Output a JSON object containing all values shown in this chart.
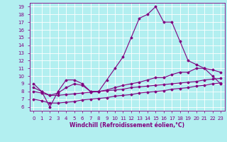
{
  "xlabel": "Windchill (Refroidissement éolien,°C)",
  "background_color": "#b2eff0",
  "grid_color": "#ffffff",
  "line_color": "#800080",
  "x_values": [
    0,
    1,
    2,
    3,
    4,
    5,
    6,
    7,
    8,
    9,
    10,
    11,
    12,
    13,
    14,
    15,
    16,
    17,
    18,
    19,
    20,
    21,
    22,
    23
  ],
  "y_main": [
    9,
    8,
    6,
    8,
    9.5,
    9.5,
    9,
    8,
    8,
    9.5,
    11,
    12.5,
    15,
    17.5,
    18,
    19,
    17,
    17,
    14.5,
    12,
    11.5,
    11,
    10,
    9
  ],
  "y_line1": [
    8.0,
    7.8,
    7.5,
    7.5,
    7.6,
    7.7,
    7.8,
    7.9,
    8.0,
    8.1,
    8.2,
    8.3,
    8.5,
    8.6,
    8.7,
    8.8,
    8.9,
    9.0,
    9.1,
    9.2,
    9.3,
    9.5,
    9.6,
    9.7
  ],
  "y_line2": [
    7.0,
    6.8,
    6.5,
    6.5,
    6.6,
    6.7,
    6.9,
    7.0,
    7.1,
    7.2,
    7.4,
    7.5,
    7.6,
    7.8,
    7.9,
    8.0,
    8.1,
    8.3,
    8.4,
    8.5,
    8.7,
    8.8,
    9.0,
    9.1
  ],
  "y_line3": [
    8.5,
    8.0,
    7.5,
    7.8,
    8.5,
    9.0,
    8.8,
    8.0,
    8.0,
    8.2,
    8.5,
    8.8,
    9.0,
    9.2,
    9.5,
    9.8,
    9.8,
    10.2,
    10.5,
    10.5,
    11.0,
    11.0,
    10.8,
    10.5
  ],
  "ylim": [
    5.5,
    19.5
  ],
  "xlim": [
    -0.5,
    23.5
  ],
  "yticks": [
    6,
    7,
    8,
    9,
    10,
    11,
    12,
    13,
    14,
    15,
    16,
    17,
    18,
    19
  ],
  "xticks": [
    0,
    1,
    2,
    3,
    4,
    5,
    6,
    7,
    8,
    9,
    10,
    11,
    12,
    13,
    14,
    15,
    16,
    17,
    18,
    19,
    20,
    21,
    22,
    23
  ],
  "line_width": 0.8,
  "marker": "D",
  "marker_size": 1.5,
  "tick_fontsize": 5.0,
  "xlabel_fontsize": 5.5
}
